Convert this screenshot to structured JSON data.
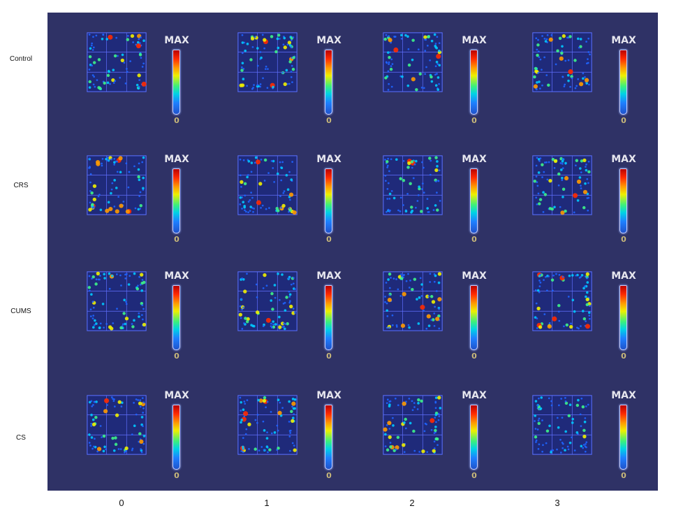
{
  "figure": {
    "row_labels": [
      "Control",
      "CRS",
      "CUMS",
      "CS"
    ],
    "col_labels": [
      "0",
      "1",
      "2",
      "3"
    ],
    "colorbar": {
      "max_label": "MAX",
      "min_label": "0"
    },
    "panel_color": "#2f3266",
    "colormap": "jet",
    "cell_content": "open-field occupancy heatmap (3x3 grid arena)"
  }
}
